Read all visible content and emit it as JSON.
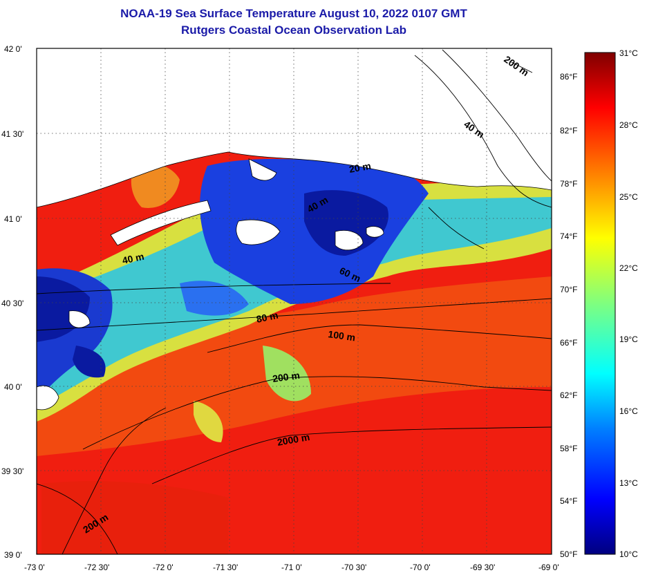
{
  "title": "NOAA-19 Sea Surface Temperature August 10, 2022 0107 GMT",
  "subtitle": "Rutgers Coastal Ocean Observation Lab",
  "lat_ticks": [
    "42 0'",
    "41 30'",
    "41 0'",
    "40 30'",
    "40 0'",
    "39 30'",
    "39 0'"
  ],
  "lon_ticks": [
    "-73 0'",
    "-72 30'",
    "-72 0'",
    "-71 30'",
    "-71 0'",
    "-70 30'",
    "-70 0'",
    "-69 30'",
    "-69 0'"
  ],
  "fahrenheit_ticks": [
    "86°F",
    "82°F",
    "78°F",
    "74°F",
    "70°F",
    "66°F",
    "62°F",
    "58°F",
    "54°F",
    "50°F"
  ],
  "celsius_ticks": [
    "31°C",
    "28°C",
    "25°C",
    "22°C",
    "19°C",
    "16°C",
    "13°C",
    "10°C"
  ],
  "isobath_labels": [
    "200 m",
    "40 m",
    "20 m",
    "40 m",
    "40 m",
    "60 m",
    "80 m",
    "100 m",
    "200 m",
    "2000 m",
    "200 m"
  ],
  "colors": {
    "title": "#1a1aa8",
    "scale": [
      "#00007f",
      "#0000ff",
      "#007fff",
      "#00ffff",
      "#7fff7f",
      "#ffff00",
      "#ff7f00",
      "#ff0000",
      "#7f0000"
    ]
  }
}
